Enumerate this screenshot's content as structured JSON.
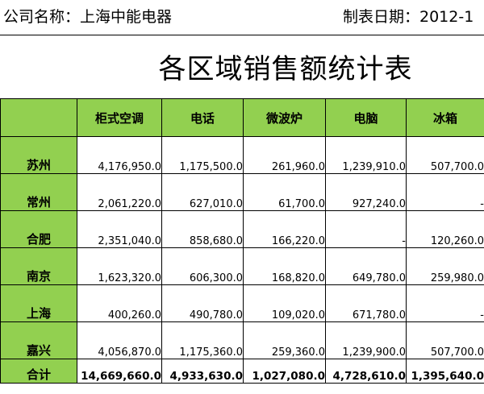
{
  "header": {
    "company": "公司名称：上海中能电器",
    "date": "制表日期：2012-1"
  },
  "title": "各区域销售额统计表",
  "table": {
    "columns": [
      "",
      "柜式空调",
      "电话",
      "微波炉",
      "电脑",
      "冰箱"
    ],
    "rows": [
      {
        "region": "苏州",
        "values": [
          "4,176,950.0",
          "1,175,500.0",
          "261,960.0",
          "1,239,910.0",
          "507,700.0"
        ]
      },
      {
        "region": "常州",
        "values": [
          "2,061,220.0",
          "627,010.0",
          "61,700.0",
          "927,240.0",
          "-"
        ]
      },
      {
        "region": "合肥",
        "values": [
          "2,351,040.0",
          "858,680.0",
          "166,220.0",
          "-",
          "120,260.0"
        ]
      },
      {
        "region": "南京",
        "values": [
          "1,623,320.0",
          "606,300.0",
          "168,820.0",
          "649,780.0",
          "259,980.0"
        ]
      },
      {
        "region": "上海",
        "values": [
          "400,260.0",
          "490,780.0",
          "109,020.0",
          "671,780.0",
          "-"
        ]
      },
      {
        "region": "嘉兴",
        "values": [
          "4,056,870.0",
          "1,175,360.0",
          "259,360.0",
          "1,239,900.0",
          "507,700.0"
        ]
      }
    ],
    "total": {
      "region": "合计",
      "values": [
        "14,669,660.0",
        "4,933,630.0",
        "1,027,080.0",
        "4,728,610.0",
        "1,395,640.0"
      ]
    }
  },
  "colors": {
    "header_fill": "#92d050",
    "grid_line": "#000000"
  }
}
